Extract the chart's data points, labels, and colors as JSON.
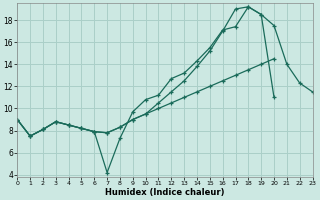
{
  "xlabel": "Humidex (Indice chaleur)",
  "background_color": "#cce8e2",
  "grid_color": "#aacfc8",
  "line_color": "#1a6b5a",
  "xlim": [
    0,
    23
  ],
  "ylim": [
    3.8,
    19.5
  ],
  "yticks": [
    4,
    6,
    8,
    10,
    12,
    14,
    16,
    18
  ],
  "xticks": [
    0,
    1,
    2,
    3,
    4,
    5,
    6,
    7,
    8,
    9,
    10,
    11,
    12,
    13,
    14,
    15,
    16,
    17,
    18,
    19,
    20,
    21,
    22,
    23
  ],
  "series": [
    {
      "x": [
        0,
        1,
        2,
        3,
        4,
        5,
        6,
        7,
        8,
        9,
        10,
        11,
        12,
        13,
        14,
        15,
        16,
        17,
        18,
        19,
        20,
        21,
        22,
        23
      ],
      "y": [
        9.0,
        7.5,
        8.1,
        8.8,
        8.5,
        8.2,
        7.9,
        4.2,
        7.3,
        9.7,
        10.8,
        11.2,
        12.7,
        13.2,
        14.3,
        15.5,
        17.1,
        17.4,
        19.2,
        18.5,
        17.5,
        14.0,
        12.3,
        11.5
      ]
    },
    {
      "x": [
        0,
        1,
        2,
        3,
        4,
        5,
        6,
        7,
        8,
        9,
        10,
        11,
        12,
        13,
        14,
        15,
        16,
        17,
        18,
        19,
        20
      ],
      "y": [
        9.0,
        7.5,
        8.1,
        8.8,
        8.5,
        8.2,
        7.9,
        7.8,
        8.3,
        9.0,
        9.5,
        10.5,
        11.5,
        12.5,
        13.8,
        15.2,
        17.0,
        19.0,
        19.2,
        18.5,
        11.0
      ]
    },
    {
      "x": [
        0,
        1,
        2,
        3,
        4,
        5,
        6,
        7,
        8,
        9,
        10,
        11,
        12,
        13,
        14,
        15,
        16,
        17,
        18,
        19,
        20,
        21,
        22,
        23
      ],
      "y": [
        9.0,
        7.5,
        8.1,
        8.8,
        8.5,
        8.2,
        7.9,
        7.8,
        8.3,
        9.0,
        9.5,
        10.0,
        10.5,
        11.0,
        11.5,
        12.0,
        12.5,
        13.0,
        13.5,
        14.0,
        14.5,
        null,
        null,
        null
      ]
    }
  ]
}
